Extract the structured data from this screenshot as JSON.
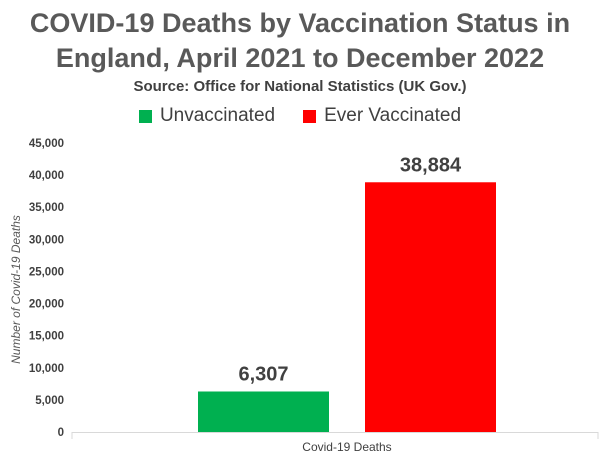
{
  "chart_data": {
    "type": "bar",
    "title_line1": "COVID-19 Deaths by Vaccination Status in",
    "title_line2": "England, April 2021 to December 2022",
    "subtitle": "Source: Office for National Statistics (UK Gov.)",
    "categories": [
      "Covid-19 Deaths"
    ],
    "series": [
      {
        "name": "Unvaccinated",
        "values": [
          6307
        ],
        "label": "6,307",
        "color": "#00b050"
      },
      {
        "name": "Ever Vaccinated",
        "values": [
          38884
        ],
        "label": "38,884",
        "color": "#ff0000"
      }
    ],
    "xlabel": "Covid-19 Deaths",
    "ylabel": "Number of Covid-19 Deaths",
    "ylim": [
      0,
      45000
    ],
    "yticks": [
      0,
      5000,
      10000,
      15000,
      20000,
      25000,
      30000,
      35000,
      40000,
      45000
    ],
    "ytick_labels": [
      "0",
      "5,000",
      "10,000",
      "15,000",
      "20,000",
      "25,000",
      "30,000",
      "35,000",
      "40,000",
      "45,000"
    ],
    "grid": false,
    "legend_position": "top"
  }
}
